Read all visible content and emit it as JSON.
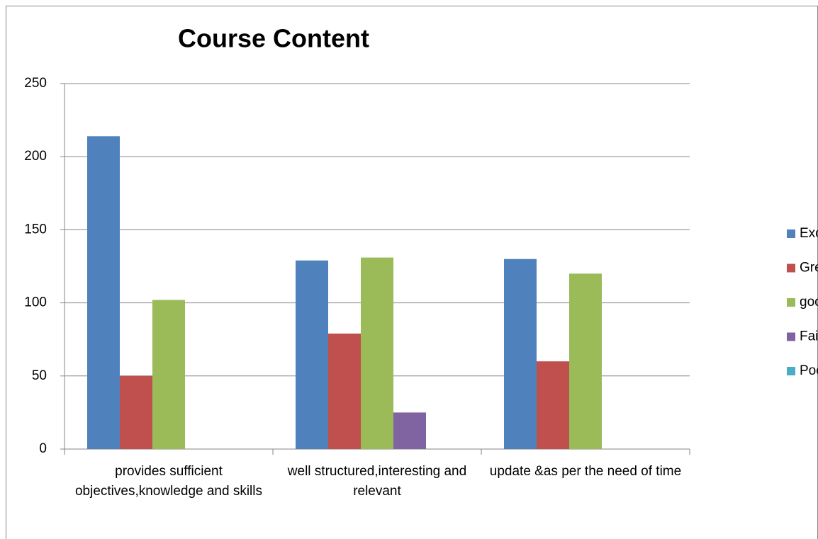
{
  "chart_data": {
    "type": "bar",
    "title": "Course Content",
    "categories": [
      "provides sufficient objectives,knowledge and skills",
      "well structured,interesting and relevant",
      "update &as per the need of time"
    ],
    "series": [
      {
        "name": "Excellent",
        "color": "#4f81bd",
        "values": [
          214,
          129,
          130
        ]
      },
      {
        "name": "Great",
        "color": "#c0504d",
        "values": [
          50,
          79,
          60
        ]
      },
      {
        "name": "good",
        "color": "#9bbb59",
        "values": [
          102,
          131,
          120
        ]
      },
      {
        "name": "Fair",
        "color": "#8064a2",
        "values": [
          0,
          25,
          0
        ]
      },
      {
        "name": "Poor",
        "color": "#4bacc6",
        "values": [
          0,
          0,
          0
        ]
      }
    ],
    "ylim": [
      0,
      250
    ],
    "yticks": [
      0,
      50,
      100,
      150,
      200,
      250
    ],
    "grid": true,
    "legend": "right"
  }
}
